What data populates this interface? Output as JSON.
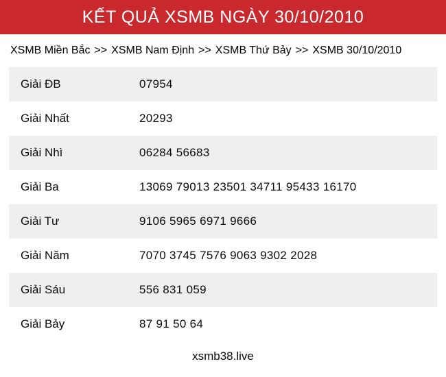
{
  "header": {
    "title": "KẾT QUẢ XSMB NGÀY 30/10/2010",
    "bg_color": "#c9292c",
    "text_color": "#ffffff"
  },
  "breadcrumb": {
    "separator": ">>",
    "items": [
      "XSMB Miền Bắc",
      "XSMB Nam Định",
      "XSMB Thứ Bảy",
      "XSMB 30/10/2010"
    ]
  },
  "results_table": {
    "stripe_color": "#efefef",
    "rows": [
      {
        "label": "Giải ĐB",
        "numbers": "07954"
      },
      {
        "label": "Giải Nhất",
        "numbers": "20293"
      },
      {
        "label": "Giải Nhì",
        "numbers": "06284 56683"
      },
      {
        "label": "Giải Ba",
        "numbers": "13069 79013 23501 34711 95433 16170"
      },
      {
        "label": "Giải Tư",
        "numbers": "9106 5965 6971 9666"
      },
      {
        "label": "Giải Năm",
        "numbers": "7070 3745 7576 9063 9302 2028"
      },
      {
        "label": "Giải Sáu",
        "numbers": "556 831 059"
      },
      {
        "label": "Giải Bảy",
        "numbers": "87 91 50 64"
      }
    ]
  },
  "footer": {
    "site_name": "xsmb38.live"
  }
}
